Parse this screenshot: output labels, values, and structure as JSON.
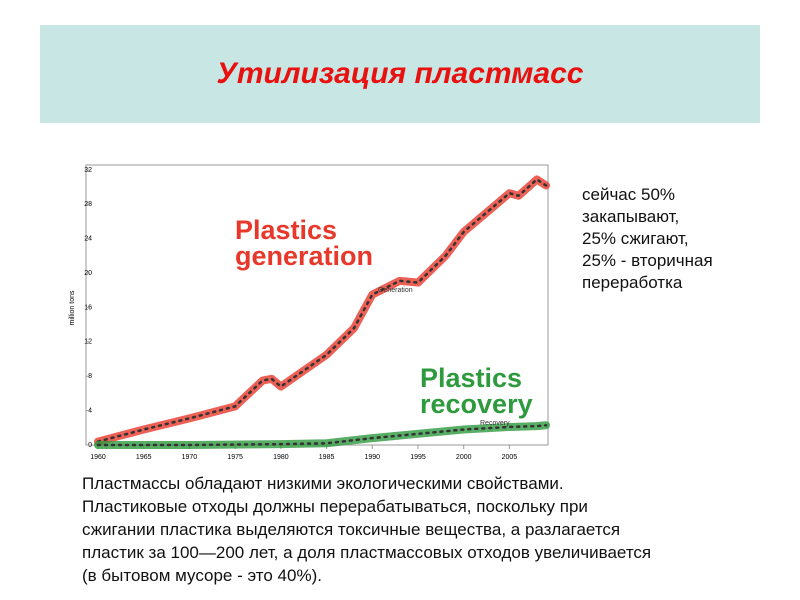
{
  "header": {
    "title": "Утилизация пластмасс"
  },
  "note": [
    "сейчас 50%",
    "закапывают,",
    "25% сжигают,",
    "25% - вторичная",
    "переработка"
  ],
  "body": [
    "Пластмассы обладают низкими экологическими свойствами.",
    "Пластиковые отходы должны перерабатываться, поскольку при",
    "сжигании пластика выделяются токсичные вещества, а разлагается",
    "пластик за 100—200 лет, а доля пластмассовых отходов увеличивается",
    "(в бытовом мусоре - это 40%)."
  ],
  "chart_data": {
    "type": "line",
    "y_label": "million tons",
    "xlim": [
      1960,
      2009
    ],
    "ylim": [
      0,
      32
    ],
    "xticks": [
      1960,
      1965,
      1970,
      1975,
      1980,
      1985,
      1990,
      1995,
      2000,
      2005
    ],
    "yticks": [
      0,
      4,
      8,
      12,
      16,
      20,
      24,
      28,
      32
    ],
    "series": [
      {
        "name": "Generation",
        "color": "#e8382b",
        "big_label": [
          "Plastics",
          "generation"
        ],
        "x": [
          1960,
          1965,
          1970,
          1975,
          1978,
          1979,
          1980,
          1985,
          1988,
          1990,
          1993,
          1995,
          1998,
          2000,
          2003,
          2005,
          2006,
          2008,
          2009
        ],
        "values": [
          0.4,
          1.8,
          3.1,
          4.5,
          7.5,
          7.7,
          6.8,
          10.5,
          13.6,
          17.5,
          19.1,
          18.9,
          22,
          24.8,
          27.5,
          29.3,
          29,
          30.9,
          30.2
        ]
      },
      {
        "name": "Recovery",
        "color": "#2e9a3e",
        "big_label": [
          "Plastics",
          "recovery"
        ],
        "x": [
          1960,
          1970,
          1980,
          1985,
          1990,
          1995,
          2000,
          2005,
          2008,
          2009
        ],
        "values": [
          0,
          0,
          0.1,
          0.2,
          0.8,
          1.3,
          1.8,
          2.1,
          2.2,
          2.3
        ]
      }
    ]
  }
}
